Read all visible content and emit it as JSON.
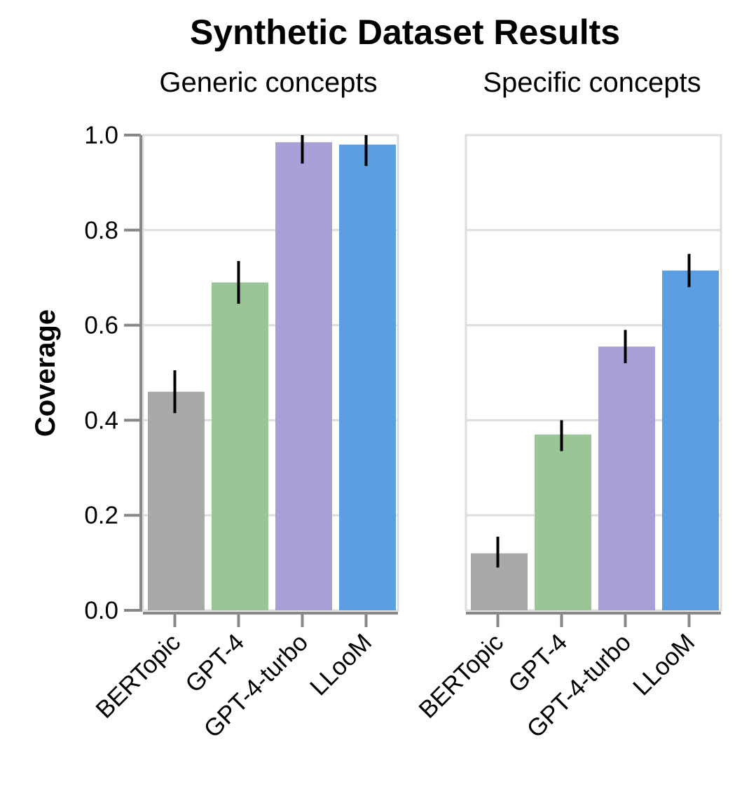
{
  "chart_data": {
    "type": "bar",
    "title": "Synthetic Dataset Results",
    "ylabel": "Coverage",
    "xlabel": "",
    "ylim": [
      0,
      1.0
    ],
    "yticks": [
      "0.0",
      "0.2",
      "0.4",
      "0.6",
      "0.8",
      "1.0"
    ],
    "grid": true,
    "categories": [
      "BERTopic",
      "GPT-4",
      "GPT-4-turbo",
      "LLooM"
    ],
    "colors": {
      "BERTopic": "#a9a9a9",
      "GPT-4": "#9ac597",
      "GPT-4-turbo": "#aa9fd6",
      "LLooM": "#5a9fe0"
    },
    "facets": [
      {
        "name": "Generic concepts",
        "values": [
          0.46,
          0.69,
          0.985,
          0.98
        ],
        "error_low": [
          0.415,
          0.645,
          0.94,
          0.935
        ],
        "error_high": [
          0.505,
          0.735,
          1.0,
          1.0
        ]
      },
      {
        "name": "Specific concepts",
        "values": [
          0.12,
          0.37,
          0.555,
          0.715
        ],
        "error_low": [
          0.09,
          0.335,
          0.52,
          0.68
        ],
        "error_high": [
          0.155,
          0.4,
          0.59,
          0.75
        ]
      }
    ]
  }
}
